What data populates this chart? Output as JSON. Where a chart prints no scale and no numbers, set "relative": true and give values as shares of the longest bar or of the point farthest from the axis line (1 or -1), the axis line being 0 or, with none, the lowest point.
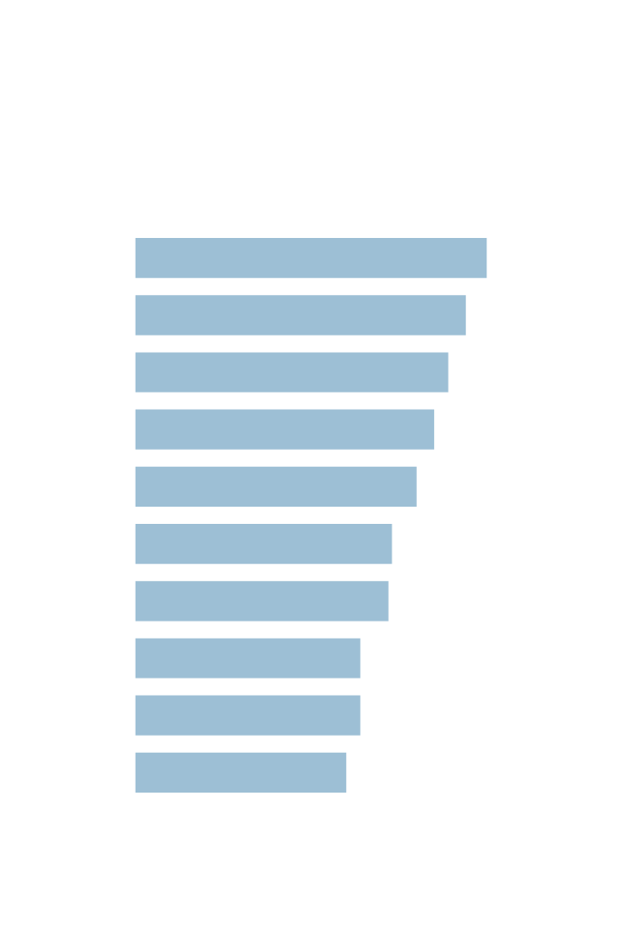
{
  "chart_data": {
    "type": "bar",
    "orientation": "horizontal",
    "relative": true,
    "categories": [
      null,
      null,
      null,
      null,
      null,
      null,
      null,
      null,
      null,
      null
    ],
    "values": [
      1,
      0.94,
      0.89,
      0.85,
      0.8,
      0.73,
      0.72,
      0.64,
      0.64,
      0.6
    ],
    "color": "#9dbfd5"
  }
}
